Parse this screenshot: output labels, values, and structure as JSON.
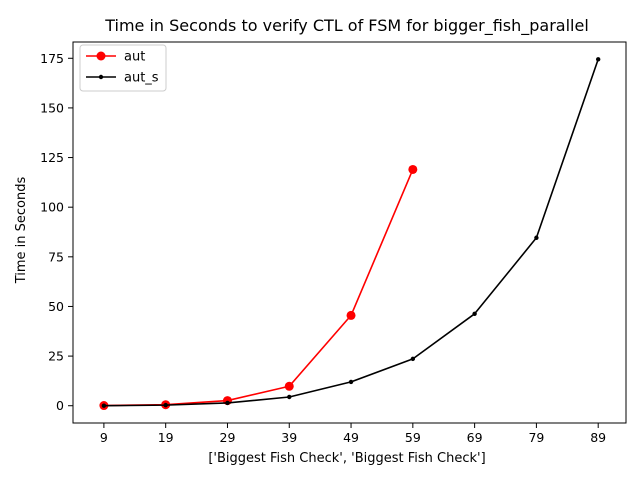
{
  "chart_data": {
    "type": "line",
    "title": "Time in Seconds to verify CTL of FSM for bigger_fish_parallel",
    "xlabel": "['Biggest Fish Check', 'Biggest Fish Check']",
    "ylabel": "Time in Seconds",
    "x_ticks": [
      "9",
      "19",
      "29",
      "39",
      "49",
      "59",
      "69",
      "79",
      "89"
    ],
    "y_ticks": [
      "0",
      "25",
      "50",
      "75",
      "100",
      "125",
      "150",
      "175"
    ],
    "xlim": [
      4,
      93.5
    ],
    "ylim": [
      -8.7,
      183.2
    ],
    "grid": false,
    "legend_position": "top-left",
    "series": [
      {
        "name": "aut",
        "color": "#ff0000",
        "marker": "large-dot",
        "x": [
          9,
          19,
          29,
          39,
          49,
          59
        ],
        "y": [
          0.1,
          0.5,
          2.6,
          9.8,
          45.5,
          119.0
        ]
      },
      {
        "name": "aut_s",
        "color": "#000000",
        "marker": "small-dot",
        "x": [
          9,
          19,
          29,
          39,
          49,
          59,
          69,
          79,
          89
        ],
        "y": [
          0.0,
          0.3,
          1.4,
          4.4,
          12.0,
          23.6,
          46.3,
          84.6,
          174.5
        ]
      }
    ]
  }
}
